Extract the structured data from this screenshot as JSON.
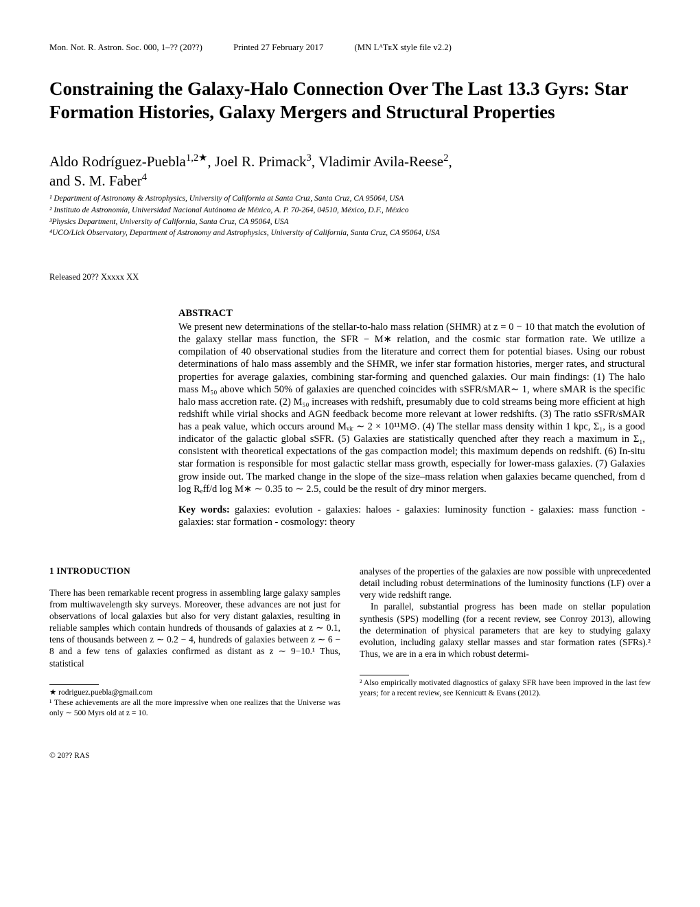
{
  "header": {
    "journal": "Mon. Not. R. Astron. Soc. 000, 1–?? (20??)",
    "printed": "Printed 27 February 2017",
    "style": "(MN LᴬTᴇX style file v2.2)"
  },
  "title": "Constraining the Galaxy-Halo Connection Over The Last 13.3 Gyrs: Star Formation Histories, Galaxy Mergers and Structural Properties",
  "authors_line1": "Aldo Rodríguez-Puebla",
  "authors_sup1": "1,2★",
  "authors_mid1": ", Joel R. Primack",
  "authors_sup2": "3",
  "authors_mid2": ", Vladimir Avila-Reese",
  "authors_sup3": "2",
  "authors_mid3": ",",
  "authors_line2": "and S. M. Faber",
  "authors_sup4": "4",
  "affiliations": [
    "¹ Department of Astronomy & Astrophysics, University of California at Santa Cruz, Santa Cruz, CA 95064, USA",
    "² Instituto de Astronomía, Universidad Nacional Autónoma de México, A. P. 70-264, 04510, México, D.F., México",
    "³Physics Department, University of California, Santa Cruz, CA 95064, USA",
    "⁴UCO/Lick Observatory, Department of Astronomy and Astrophysics, University of California, Santa Cruz, CA 95064, USA"
  ],
  "released": "Released 20?? Xxxxx XX",
  "abstract_head": "ABSTRACT",
  "abstract_body": "We present new determinations of the stellar-to-halo mass relation (SHMR) at z = 0 − 10 that match the evolution of the galaxy stellar mass function, the SFR − M∗ relation, and the cosmic star formation rate. We utilize a compilation of 40 observational studies from the literature and correct them for potential biases. Using our robust determinations of halo mass assembly and the SHMR, we infer star formation histories, merger rates, and structural properties for average galaxies, combining star-forming and quenched galaxies. Our main findings: (1) The halo mass M₅₀ above which 50% of galaxies are quenched coincides with sSFR/sMAR∼ 1, where sMAR is the specific halo mass accretion rate. (2) M₅₀ increases with redshift, presumably due to cold streams being more efficient at high redshift while virial shocks and AGN feedback become more relevant at lower redshifts. (3) The ratio sSFR/sMAR has a peak value, which occurs around Mᵥᵢᵣ ∼ 2 × 10¹¹M⊙. (4) The stellar mass density within 1 kpc, Σ₁, is a good indicator of the galactic global sSFR. (5) Galaxies are statistically quenched after they reach a maximum in Σ₁, consistent with theoretical expectations of the gas compaction model; this maximum depends on redshift. (6) In-situ star formation is responsible for most galactic stellar mass growth, especially for lower-mass galaxies. (7) Galaxies grow inside out. The marked change in the slope of the size–mass relation when galaxies became quenched, from d log Rₑff/d log M∗ ∼ 0.35 to ∼ 2.5, could be the result of dry minor mergers.",
  "keywords_head": "Key words:",
  "keywords_body": " galaxies: evolution - galaxies: haloes - galaxies: luminosity function - galaxies: mass function - galaxies: star formation - cosmology: theory",
  "section1_head": "1   INTRODUCTION",
  "col1_p1": "There has been remarkable recent progress in assembling large galaxy samples from multiwavelength sky surveys. Moreover, these advances are not just for observations of local galaxies but also for very distant galaxies, resulting in reliable samples which contain hundreds of thousands of galaxies at z ∼ 0.1, tens of thousands between z ∼ 0.2 − 4, hundreds of galaxies between z ∼ 6 − 8 and a few tens of galaxies confirmed as distant as z ∼ 9−10.¹ Thus, statistical",
  "col2_p1": "analyses of the properties of the galaxies are now possible with unprecedented detail including robust determinations of the luminosity functions (LF) over a very wide redshift range.",
  "col2_p2": "In parallel, substantial progress has been made on stellar population synthesis (SPS) modelling (for a recent review, see Conroy 2013), allowing the determination of physical parameters that are key to studying galaxy evolution, including galaxy stellar masses and star formation rates (SFRs).² Thus, we are in a era in which robust determi-",
  "fn_star": "★  rodriguez.puebla@gmail.com",
  "fn1": "¹ These achievements are all the more impressive when one realizes that the Universe was only ∼ 500 Myrs old at z = 10.",
  "fn2": "² Also empirically motivated diagnostics of galaxy SFR have been improved in the last few years; for a recent review, see Kennicutt & Evans (2012).",
  "copyright": "© 20?? RAS"
}
